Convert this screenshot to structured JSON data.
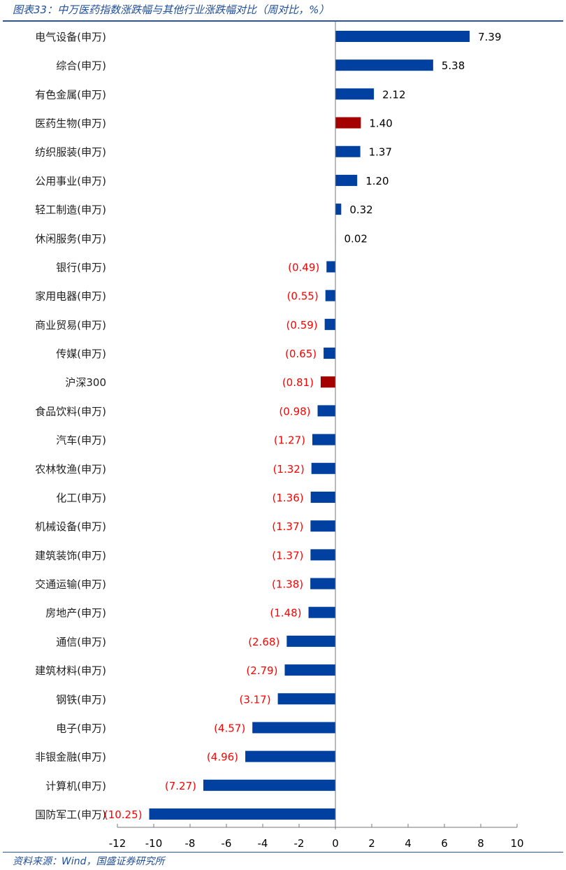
{
  "title": "图表33：中万医药指数涨跌幅与其他行业涨跌幅对比（周对比，%）",
  "source": "资料来源：Wind，国盛证券研究所",
  "colors": {
    "normal_bar": "#0040A0",
    "highlight_bar": "#A50000",
    "positive_label": "#000000",
    "negative_label": "#FF0000"
  },
  "chart_data": {
    "type": "bar",
    "orientation": "horizontal",
    "xlim": [
      -12,
      10
    ],
    "xticks": [
      -12,
      -10,
      -8,
      -6,
      -4,
      -2,
      0,
      2,
      4,
      6,
      8,
      10
    ],
    "grid": false,
    "categories": [
      "电气设备(申万)",
      "综合(申万)",
      "有色金属(申万)",
      "医药生物(申万)",
      "纺织服装(申万)",
      "公用事业(申万)",
      "轻工制造(申万)",
      "休闲服务(申万)",
      "银行(申万)",
      "家用电器(申万)",
      "商业贸易(申万)",
      "传媒(申万)",
      "沪深300",
      "食品饮料(申万)",
      "汽车(申万)",
      "农林牧渔(申万)",
      "化工(申万)",
      "机械设备(申万)",
      "建筑装饰(申万)",
      "交通运输(申万)",
      "房地产(申万)",
      "通信(申万)",
      "建筑材料(申万)",
      "钢铁(申万)",
      "电子(申万)",
      "非银金融(申万)",
      "计算机(申万)",
      "国防军工(申万)"
    ],
    "values": [
      7.39,
      5.38,
      2.12,
      1.4,
      1.37,
      1.2,
      0.32,
      0.02,
      -0.49,
      -0.55,
      -0.59,
      -0.65,
      -0.81,
      -0.98,
      -1.27,
      -1.32,
      -1.36,
      -1.37,
      -1.37,
      -1.38,
      -1.48,
      -2.68,
      -2.79,
      -3.17,
      -4.57,
      -4.96,
      -7.27,
      -10.25
    ],
    "data_labels": [
      "7.39",
      "5.38",
      "2.12",
      "1.40",
      "1.37",
      "1.20",
      "0.32",
      "0.02",
      "(0.49)",
      "(0.55)",
      "(0.59)",
      "(0.65)",
      "(0.81)",
      "(0.98)",
      "(1.27)",
      "(1.32)",
      "(1.36)",
      "(1.37)",
      "(1.37)",
      "(1.38)",
      "(1.48)",
      "(2.68)",
      "(2.79)",
      "(3.17)",
      "(4.57)",
      "(4.96)",
      "(7.27)",
      "(10.25)"
    ],
    "highlighted": [
      "医药生物(申万)",
      "沪深300"
    ]
  }
}
